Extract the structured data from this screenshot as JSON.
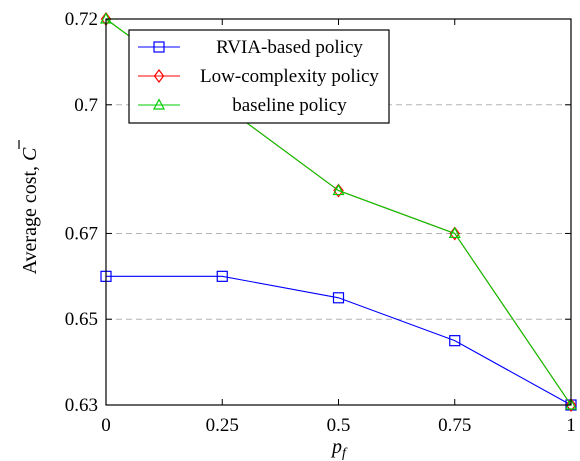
{
  "chart_data": {
    "type": "line",
    "x": [
      0,
      0.25,
      0.5,
      0.75,
      1
    ],
    "x_tick_labels": [
      "0",
      "0.25",
      "0.5",
      "0.75",
      "1"
    ],
    "y_tick_values": [
      0.63,
      0.65,
      0.67,
      0.7,
      0.72
    ],
    "y_tick_labels": [
      "0.63",
      "0.65",
      "0.67",
      "0.7",
      "0.72"
    ],
    "xlim": [
      0,
      1
    ],
    "ylim": [
      0.63,
      0.72
    ],
    "xlabel": "p_f",
    "ylabel": "Average cost, C̄",
    "grid": "horizontal dashed",
    "legend_position": "top-left",
    "series": [
      {
        "name": "RVIA-based policy",
        "color": "#0000ff",
        "marker": "square",
        "values": [
          0.66,
          0.66,
          0.655,
          0.645,
          0.63
        ]
      },
      {
        "name": "Low-complexity policy",
        "color": "#ff0000",
        "marker": "diamond",
        "values": [
          0.72,
          0.7,
          0.68,
          0.67,
          0.63
        ]
      },
      {
        "name": "baseline policy",
        "color": "#00cc00",
        "marker": "triangle",
        "values": [
          0.72,
          0.7,
          0.68,
          0.67,
          0.63
        ]
      }
    ]
  }
}
